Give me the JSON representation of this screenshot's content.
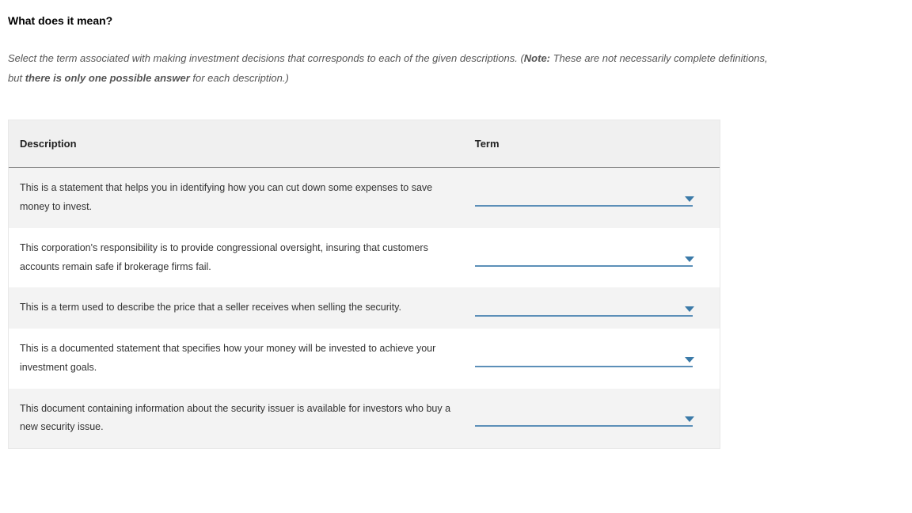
{
  "heading": "What does it mean?",
  "instructions": {
    "pre": "Select the term associated with making investment decisions that corresponds to each of the given descriptions. (",
    "note_label": "Note:",
    "mid": " These are not necessarily complete definitions, but ",
    "bold": "there is only one possible answer",
    "post": " for each description.)"
  },
  "table": {
    "headers": {
      "description": "Description",
      "term": "Term"
    },
    "rows": [
      {
        "desc": "This is a statement that helps you in identifying how you can cut down some expenses to save money to invest."
      },
      {
        "desc": "This corporation's responsibility is to provide congressional oversight, insuring that customers accounts remain safe if brokerage firms fail."
      },
      {
        "desc": "This is a term used to describe the price that a seller receives when selling the security."
      },
      {
        "desc": "This is a documented statement that specifies how your money will be invested to achieve your investment goals."
      },
      {
        "desc": "This document containing information about the security issuer is available for investors who buy a new security issue."
      }
    ]
  }
}
